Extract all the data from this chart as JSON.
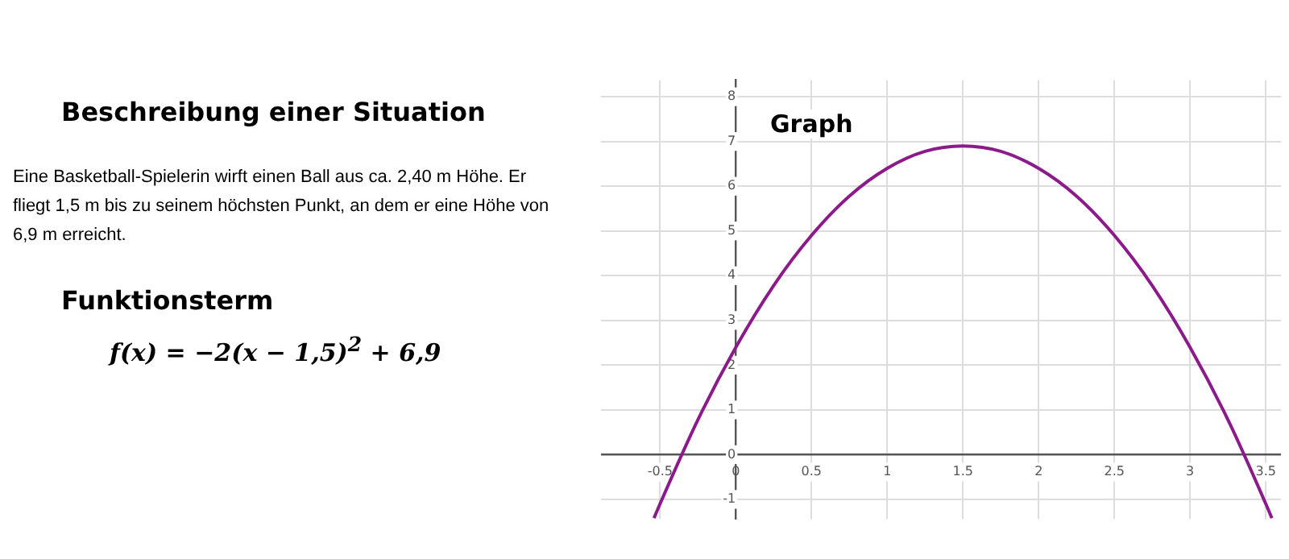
{
  "chart_data": {
    "type": "line",
    "title": "Graph",
    "annotations": [
      "Beschreibung einer Situation",
      "Eine Basketball-Spielerin wirft einen Ball aus ca. 2,40 m Höhe. Er fliegt 1,5 m bis zu seinem höchsten Punkt, an dem er eine Höhe von 6,9 m erreicht.",
      "Funktionsterm",
      "f(x) = −2(x − 1,5)$^{2}$ + 6,9"
    ],
    "x": [
      -0.54,
      -0.5,
      -0.25,
      0,
      0.25,
      0.5,
      0.75,
      1,
      1.25,
      1.5,
      1.75,
      2,
      2.25,
      2.5,
      2.75,
      3,
      3.25,
      3.5,
      3.54
    ],
    "series": [
      {
        "color": "#8b1a8b",
        "values": [
          -1.42,
          -1.1,
          0.78,
          2.4,
          3.78,
          4.9,
          5.78,
          6.4,
          6.78,
          6.9,
          6.78,
          6.4,
          5.78,
          4.9,
          3.78,
          2.4,
          0.78,
          -1.1,
          -1.42
        ]
      }
    ],
    "xlim": [
      -0.89,
      3.6
    ],
    "ylim": [
      -1.44,
      8.37
    ],
    "xticks": [
      -0.5,
      0,
      0.5,
      1,
      1.5,
      2,
      2.5,
      3,
      3.5
    ],
    "yticks": [
      -1,
      0,
      1,
      2,
      3,
      4,
      5,
      6,
      7,
      8
    ],
    "grid": true,
    "legend": false,
    "marker": "none",
    "line_style": "solid"
  }
}
